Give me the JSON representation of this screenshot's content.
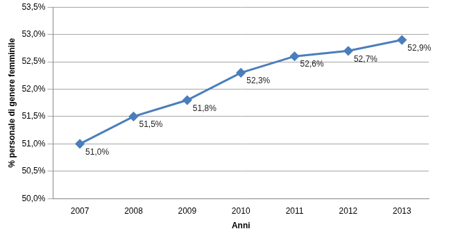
{
  "chart_data": {
    "type": "line",
    "categories": [
      "2007",
      "2008",
      "2009",
      "2010",
      "2011",
      "2012",
      "2013"
    ],
    "values": [
      51.0,
      51.5,
      51.8,
      52.3,
      52.6,
      52.7,
      52.9
    ],
    "value_labels": [
      "51,0%",
      "51,5%",
      "51,8%",
      "52,3%",
      "52,6%",
      "52,7%",
      "52,9%"
    ],
    "data_labels": true,
    "color": "#4a7ebb",
    "marker": "diamond",
    "line_style": "solid",
    "x_label": "Anni",
    "y_label": "% personale di genere femminile",
    "ylim": [
      50,
      53.5
    ],
    "yticks": [
      {
        "value": 50,
        "label": "50,0%"
      },
      {
        "value": 50.5,
        "label": "50,5%"
      },
      {
        "value": 51,
        "label": "51,0%"
      },
      {
        "value": 51.5,
        "label": "51,5%"
      },
      {
        "value": 52,
        "label": "52,0%"
      },
      {
        "value": 52.5,
        "label": "52,5%"
      },
      {
        "value": 53,
        "label": "53,0%"
      },
      {
        "value": 53.5,
        "label": "53,5%"
      }
    ],
    "grid": "y"
  }
}
